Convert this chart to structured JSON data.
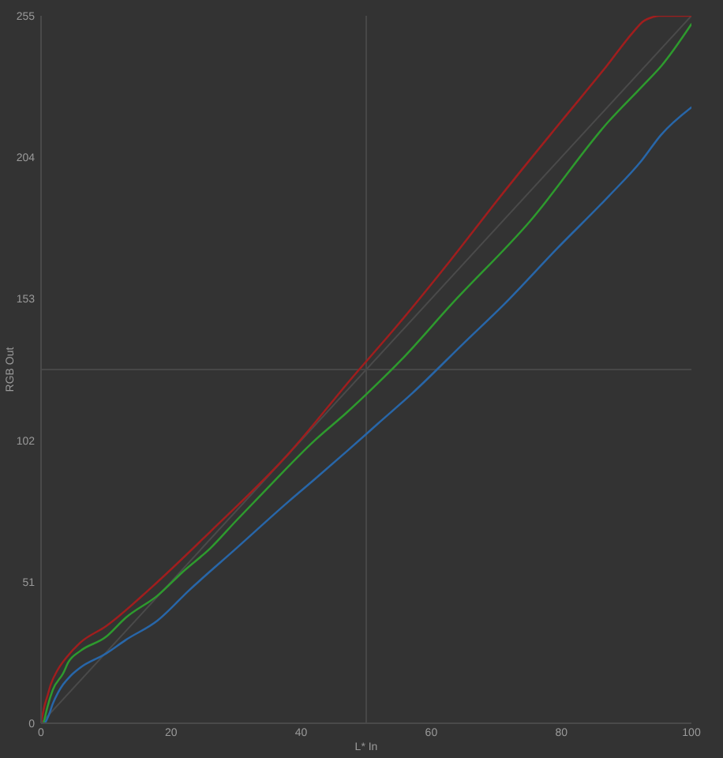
{
  "chart_data": {
    "type": "line",
    "xlabel": "L* In",
    "ylabel": "RGB Out",
    "xlim": [
      0,
      100
    ],
    "ylim": [
      0,
      255
    ],
    "xticks": [
      0,
      20,
      40,
      60,
      80,
      100
    ],
    "yticks": [
      0,
      51,
      102,
      153,
      204,
      255
    ],
    "marker": "none",
    "line_style": "solid",
    "ref_lines": [
      {
        "axis": "x",
        "value": 50,
        "color": "#474747"
      },
      {
        "axis": "y",
        "value": 127.5,
        "color": "#474747"
      }
    ],
    "series": [
      {
        "type": "line",
        "color": "#4a4a4a",
        "x": [
          0,
          100
        ],
        "values": [
          0,
          255
        ]
      },
      {
        "color": "#a01e1e",
        "x": [
          0,
          0.5,
          1,
          1.5,
          2.5,
          4,
          6,
          10,
          17,
          26,
          38,
          48,
          55,
          63,
          71,
          80,
          87,
          91,
          92.6,
          94,
          95,
          100
        ],
        "values": [
          0,
          6,
          10,
          14,
          19,
          24,
          29,
          35,
          49,
          69,
          97,
          125,
          144,
          167,
          191,
          217,
          237,
          249,
          253,
          254.5,
          255,
          255
        ]
      },
      {
        "color": "#2e9a2e",
        "x": [
          0.4,
          1,
          1.8,
          3.4,
          4.2,
          6,
          9.9,
          13,
          17.9,
          22,
          26,
          30,
          34.1,
          42.1,
          47,
          50.2,
          55.4,
          63.1,
          75.2,
          87.3,
          92.6,
          95.4,
          100
        ],
        "values": [
          0,
          6,
          12,
          18,
          22,
          26,
          31,
          38,
          46,
          55,
          63,
          73,
          83,
          102,
          112,
          119,
          131,
          151,
          181,
          217,
          230,
          237,
          252
        ]
      },
      {
        "color": "#2866a8",
        "x": [
          0.6,
          1.2,
          1.8,
          2.6,
          3.4,
          4.5,
          6,
          9.9,
          13,
          17.9,
          22.8,
          30,
          38.1,
          42.1,
          47,
          51.8,
          57.1,
          65,
          71.2,
          79.3,
          87.3,
          92.4,
          95.3,
          100
        ],
        "values": [
          0,
          3,
          7,
          11,
          14,
          17,
          20,
          25,
          30,
          37,
          48,
          63,
          80,
          88,
          98,
          108,
          119,
          137,
          151,
          171,
          190,
          203,
          212,
          222
        ]
      }
    ]
  }
}
